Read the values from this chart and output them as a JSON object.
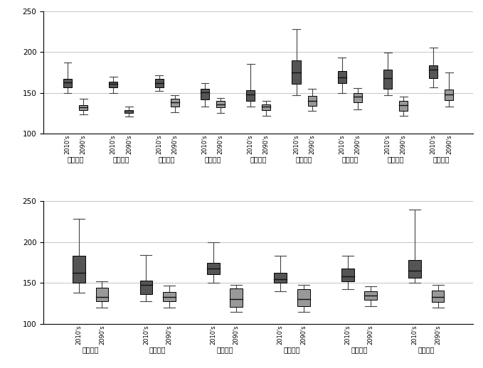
{
  "top_locations": [
    "전남해남",
    "전남신안",
    "전남영광",
    "전북고창",
    "전북김제",
    "경북안동",
    "경북봉화",
    "경북의성",
    "경북영양"
  ],
  "bottom_locations": [
    "경기화성",
    "충남청양",
    "충남태안",
    "충북괴산",
    "충북제천",
    "충북단양"
  ],
  "top_boxes": [
    {
      "loc": "전남해남",
      "era": "2010",
      "q1": 157,
      "med": 163,
      "q3": 167,
      "whislo": 150,
      "whishi": 187
    },
    {
      "loc": "전남해남",
      "era": "2090",
      "q1": 129,
      "med": 132,
      "q3": 135,
      "whislo": 124,
      "whishi": 143
    },
    {
      "loc": "전남신안",
      "era": "2010",
      "q1": 157,
      "med": 161,
      "q3": 164,
      "whislo": 150,
      "whishi": 170
    },
    {
      "loc": "전남신안",
      "era": "2090",
      "q1": 125,
      "med": 127,
      "q3": 129,
      "whislo": 121,
      "whishi": 133
    },
    {
      "loc": "전남영광",
      "era": "2010",
      "q1": 157,
      "med": 162,
      "q3": 167,
      "whislo": 152,
      "whishi": 171
    },
    {
      "loc": "전남영광",
      "era": "2090",
      "q1": 133,
      "med": 138,
      "q3": 143,
      "whislo": 126,
      "whishi": 147
    },
    {
      "loc": "전북고창",
      "era": "2010",
      "q1": 142,
      "med": 151,
      "q3": 155,
      "whislo": 133,
      "whishi": 162
    },
    {
      "loc": "전북고창",
      "era": "2090",
      "q1": 132,
      "med": 136,
      "q3": 140,
      "whislo": 125,
      "whishi": 144
    },
    {
      "loc": "전북김제",
      "era": "2010",
      "q1": 140,
      "med": 148,
      "q3": 153,
      "whislo": 133,
      "whishi": 185
    },
    {
      "loc": "전북김제",
      "era": "2090",
      "q1": 129,
      "med": 133,
      "q3": 136,
      "whislo": 122,
      "whishi": 140
    },
    {
      "loc": "경북안동",
      "era": "2010",
      "q1": 161,
      "med": 175,
      "q3": 190,
      "whislo": 147,
      "whishi": 228
    },
    {
      "loc": "경북안동",
      "era": "2090",
      "q1": 134,
      "med": 140,
      "q3": 146,
      "whislo": 128,
      "whishi": 155
    },
    {
      "loc": "경북봉화",
      "era": "2010",
      "q1": 162,
      "med": 169,
      "q3": 177,
      "whislo": 150,
      "whishi": 193
    },
    {
      "loc": "경북봉화",
      "era": "2090",
      "q1": 138,
      "med": 145,
      "q3": 150,
      "whislo": 130,
      "whishi": 156
    },
    {
      "loc": "경북의성",
      "era": "2010",
      "q1": 155,
      "med": 168,
      "q3": 178,
      "whislo": 147,
      "whishi": 199
    },
    {
      "loc": "경북의성",
      "era": "2090",
      "q1": 128,
      "med": 135,
      "q3": 140,
      "whislo": 122,
      "whishi": 145
    },
    {
      "loc": "경북영양",
      "era": "2010",
      "q1": 168,
      "med": 178,
      "q3": 184,
      "whislo": 157,
      "whishi": 205
    },
    {
      "loc": "경북영양",
      "era": "2090",
      "q1": 141,
      "med": 148,
      "q3": 154,
      "whislo": 133,
      "whishi": 175
    }
  ],
  "bottom_boxes": [
    {
      "loc": "경기화성",
      "era": "2010",
      "q1": 150,
      "med": 162,
      "q3": 183,
      "whislo": 138,
      "whishi": 228
    },
    {
      "loc": "경기화성",
      "era": "2090",
      "q1": 128,
      "med": 133,
      "q3": 144,
      "whislo": 120,
      "whishi": 152
    },
    {
      "loc": "충남청양",
      "era": "2010",
      "q1": 136,
      "med": 148,
      "q3": 153,
      "whislo": 128,
      "whishi": 184
    },
    {
      "loc": "충남청양",
      "era": "2090",
      "q1": 128,
      "med": 133,
      "q3": 139,
      "whislo": 120,
      "whishi": 147
    },
    {
      "loc": "충남태안",
      "era": "2010",
      "q1": 161,
      "med": 168,
      "q3": 175,
      "whislo": 150,
      "whishi": 200
    },
    {
      "loc": "충남태안",
      "era": "2090",
      "q1": 121,
      "med": 130,
      "q3": 143,
      "whislo": 115,
      "whishi": 148
    },
    {
      "loc": "충북괴산",
      "era": "2010",
      "q1": 150,
      "med": 155,
      "q3": 162,
      "whislo": 140,
      "whishi": 183
    },
    {
      "loc": "충북괴산",
      "era": "2090",
      "q1": 122,
      "med": 130,
      "q3": 142,
      "whislo": 115,
      "whishi": 148
    },
    {
      "loc": "충북제천",
      "era": "2010",
      "q1": 152,
      "med": 158,
      "q3": 168,
      "whislo": 142,
      "whishi": 183
    },
    {
      "loc": "충북제천",
      "era": "2090",
      "q1": 129,
      "med": 135,
      "q3": 140,
      "whislo": 122,
      "whishi": 146
    },
    {
      "loc": "충북단양",
      "era": "2010",
      "q1": 156,
      "med": 165,
      "q3": 178,
      "whislo": 150,
      "whishi": 240
    },
    {
      "loc": "충북단양",
      "era": "2090",
      "q1": 127,
      "med": 133,
      "q3": 141,
      "whislo": 120,
      "whishi": 148
    }
  ],
  "box_color_2010": "#555555",
  "box_color_2090": "#999999",
  "ylim": [
    100,
    250
  ],
  "yticks": [
    100,
    150,
    200,
    250
  ],
  "background": "#ffffff",
  "whisker_color": "#444444",
  "median_color": "#111111"
}
